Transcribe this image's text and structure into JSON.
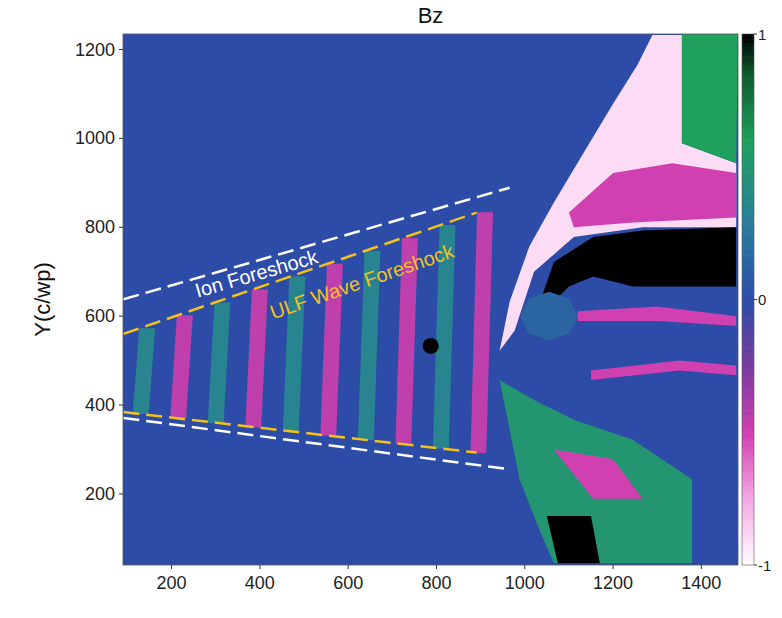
{
  "chart_data": {
    "type": "field_map",
    "title": "Bz",
    "y_label": "Y(c/wp)",
    "xlim": [
      90,
      1483
    ],
    "xticks": [
      200,
      400,
      600,
      800,
      1000,
      1200,
      1400
    ],
    "ylim": [
      40,
      1235
    ],
    "yticks": [
      200,
      400,
      600,
      800,
      1000,
      1200
    ],
    "background": 0,
    "regions": [
      {
        "value": 0.35,
        "x": [
          112,
          148,
          163,
          127
        ],
        "y": [
          380,
          380,
          573,
          573
        ]
      },
      {
        "value": -0.45,
        "x": [
          197,
          233,
          248,
          212
        ],
        "y": [
          370,
          370,
          602,
          602
        ]
      },
      {
        "value": 0.35,
        "x": [
          282,
          318,
          333,
          297
        ],
        "y": [
          360,
          360,
          631,
          631
        ]
      },
      {
        "value": -0.45,
        "x": [
          367,
          403,
          418,
          382
        ],
        "y": [
          350,
          350,
          660,
          660
        ]
      },
      {
        "value": 0.35,
        "x": [
          452,
          488,
          503,
          467
        ],
        "y": [
          341,
          341,
          689,
          689
        ]
      },
      {
        "value": -0.45,
        "x": [
          537,
          573,
          588,
          552
        ],
        "y": [
          331,
          331,
          718,
          718
        ]
      },
      {
        "value": 0.35,
        "x": [
          622,
          658,
          673,
          637
        ],
        "y": [
          321,
          321,
          747,
          747
        ]
      },
      {
        "value": -0.45,
        "x": [
          707,
          743,
          758,
          722
        ],
        "y": [
          312,
          312,
          776,
          776
        ]
      },
      {
        "value": 0.35,
        "x": [
          792,
          828,
          843,
          807
        ],
        "y": [
          302,
          302,
          805,
          805
        ]
      },
      {
        "value": -0.45,
        "x": [
          877,
          913,
          928,
          892
        ],
        "y": [
          292,
          292,
          834,
          834
        ]
      },
      {
        "value": -0.9,
        "x": [
          943,
          966,
          1010,
          1066,
          1133,
          1200,
          1256,
          1289,
          1356,
          1356,
          1479,
          1479,
          1267,
          1111,
          1021,
          977
        ],
        "y": [
          522,
          633,
          756,
          856,
          967,
          1078,
          1167,
          1233,
          1233,
          989,
          944,
          800,
          800,
          778,
          700,
          567
        ]
      },
      {
        "value": -0.5,
        "x": [
          1100,
          1200,
          1334,
          1479,
          1479,
          1245,
          1111
        ],
        "y": [
          833,
          922,
          944,
          922,
          822,
          811,
          800
        ]
      },
      {
        "value": 0.6,
        "x": [
          1356,
          1483,
          1479,
          1356
        ],
        "y": [
          1235,
          1235,
          944,
          989
        ]
      },
      {
        "value": 0.5,
        "x": [
          943,
          966,
          988,
          1032,
          1066,
          1379,
          1379,
          1245,
          1111,
          1021
        ],
        "y": [
          456,
          344,
          233,
          122,
          44,
          44,
          233,
          322,
          367,
          411
        ]
      },
      {
        "value": 1,
        "x": [
          1050,
          1150,
          1170,
          1075
        ],
        "y": [
          150,
          150,
          44,
          44
        ]
      },
      {
        "value": -0.5,
        "x": [
          1066,
          1200,
          1267,
          1155
        ],
        "y": [
          300,
          278,
          189,
          189
        ]
      },
      {
        "value": 1,
        "x": [
          1035,
          1066,
          1155,
          1267,
          1479,
          1479,
          1245,
          1155,
          1100,
          1066
        ],
        "y": [
          633,
          722,
          778,
          793,
          800,
          667,
          667,
          689,
          667,
          633
        ]
      },
      {
        "value": 0.15,
        "x": [
          1120,
          1101,
          1055,
          1009,
          990,
          1009,
          1055,
          1101
        ],
        "y": [
          600,
          639,
          655,
          639,
          600,
          561,
          545,
          561
        ]
      },
      {
        "value": -0.5,
        "x": [
          1120,
          1300,
          1479,
          1479,
          1300,
          1120
        ],
        "y": [
          611,
          622,
          600,
          578,
          589,
          589
        ]
      },
      {
        "value": -0.5,
        "x": [
          1150,
          1350,
          1479,
          1479,
          1350,
          1150
        ],
        "y": [
          478,
          500,
          489,
          467,
          478,
          456
        ]
      }
    ],
    "markers": {
      "x": [
        787
      ],
      "y": [
        533
      ],
      "color": "#000000"
    },
    "annotations": [
      {
        "text": "Ion Foreshock",
        "x": 392,
        "y": 696,
        "color": "#ffffff",
        "line_style": "dashed",
        "lines": [
          {
            "x": [
              91,
              966
            ],
            "y": [
              638,
              889
            ]
          },
          {
            "x": [
              91,
              960
            ],
            "y": [
              371,
              256
            ]
          }
        ]
      },
      {
        "text": "ULF Wave Foreshock",
        "x": 631,
        "y": 678,
        "color": "#f2c21b",
        "line_style": "dashed",
        "lines": [
          {
            "x": [
              91,
              891
            ],
            "y": [
              560,
              833
            ]
          },
          {
            "x": [
              91,
              891
            ],
            "y": [
              384,
              293
            ]
          }
        ]
      }
    ],
    "colorbar": {
      "range": [
        -1,
        1
      ],
      "ticks": [
        -1,
        0,
        1
      ]
    }
  }
}
